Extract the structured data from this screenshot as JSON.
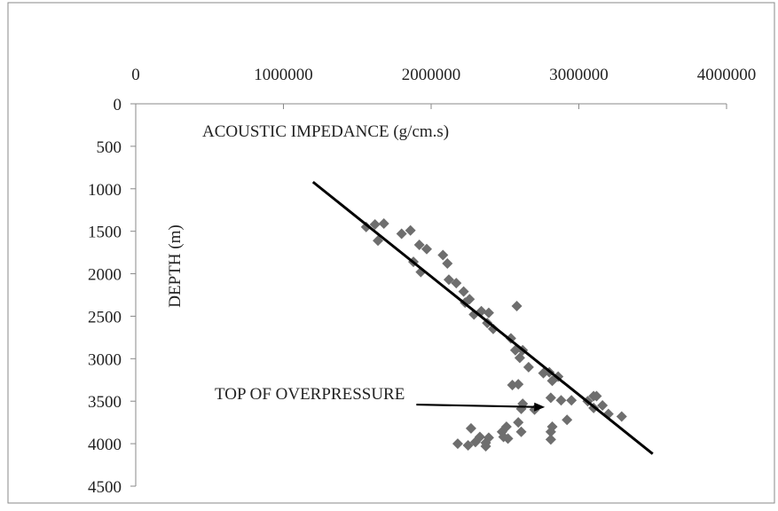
{
  "chart_data": {
    "type": "scatter",
    "title": "",
    "xlabel": "ACOUSTIC IMPEDANCE (g/cm.s)",
    "ylabel": "DEPTH (m)",
    "xlim": [
      0,
      4000000
    ],
    "ylim": [
      0,
      4500
    ],
    "y_axis_inverted": true,
    "x_axis_position": "top",
    "grid": false,
    "legend": "none",
    "x_ticks": [
      "0",
      "1000000",
      "2000000",
      "3000000",
      "4000000"
    ],
    "y_ticks": [
      "0",
      "500",
      "1000",
      "1500",
      "2000",
      "2500",
      "3000",
      "3500",
      "4000",
      "4500"
    ],
    "marker": "diamond",
    "marker_color": "#6e6e6e",
    "line_color": "#000000",
    "series": [
      {
        "points": [
          [
            1560000,
            1450
          ],
          [
            1620000,
            1420
          ],
          [
            1640000,
            1610
          ],
          [
            1680000,
            1410
          ],
          [
            1800000,
            1530
          ],
          [
            1860000,
            1490
          ],
          [
            1880000,
            1860
          ],
          [
            1920000,
            1660
          ],
          [
            1930000,
            1980
          ],
          [
            1970000,
            1710
          ],
          [
            2080000,
            1780
          ],
          [
            2110000,
            1880
          ],
          [
            2120000,
            2070
          ],
          [
            2170000,
            2110
          ],
          [
            2220000,
            2210
          ],
          [
            2230000,
            2340
          ],
          [
            2260000,
            2300
          ],
          [
            2290000,
            2480
          ],
          [
            2340000,
            2440
          ],
          [
            2390000,
            2460
          ],
          [
            2380000,
            2580
          ],
          [
            2420000,
            2650
          ],
          [
            2580000,
            2380
          ],
          [
            2540000,
            2760
          ],
          [
            2570000,
            2900
          ],
          [
            2600000,
            2990
          ],
          [
            2620000,
            2900
          ],
          [
            2660000,
            3100
          ],
          [
            2760000,
            3170
          ],
          [
            2800000,
            3160
          ],
          [
            2820000,
            3260
          ],
          [
            2860000,
            3210
          ],
          [
            2550000,
            3310
          ],
          [
            2590000,
            3300
          ],
          [
            2810000,
            3460
          ],
          [
            2880000,
            3490
          ],
          [
            2620000,
            3530
          ],
          [
            2610000,
            3590
          ],
          [
            2700000,
            3600
          ],
          [
            2950000,
            3490
          ],
          [
            3060000,
            3500
          ],
          [
            3100000,
            3440
          ],
          [
            3120000,
            3440
          ],
          [
            3100000,
            3580
          ],
          [
            3160000,
            3550
          ],
          [
            3200000,
            3650
          ],
          [
            3290000,
            3680
          ],
          [
            2590000,
            3750
          ],
          [
            2510000,
            3800
          ],
          [
            2920000,
            3720
          ],
          [
            2820000,
            3800
          ],
          [
            2810000,
            3860
          ],
          [
            2810000,
            3950
          ],
          [
            2610000,
            3860
          ],
          [
            2270000,
            3820
          ],
          [
            2480000,
            3860
          ],
          [
            2490000,
            3920
          ],
          [
            2520000,
            3940
          ],
          [
            2330000,
            3920
          ],
          [
            2390000,
            3930
          ],
          [
            2300000,
            3980
          ],
          [
            2370000,
            3990
          ],
          [
            2370000,
            4030
          ],
          [
            2180000,
            4000
          ],
          [
            2250000,
            4020
          ]
        ]
      }
    ],
    "trendline": {
      "x": [
        1200000,
        3500000
      ],
      "y": [
        920,
        4120
      ]
    },
    "annotation": {
      "text": "TOP OF OVERPRESSURE",
      "arrow_from": [
        1900000,
        3540
      ],
      "arrow_to": [
        2770000,
        3570
      ]
    }
  }
}
